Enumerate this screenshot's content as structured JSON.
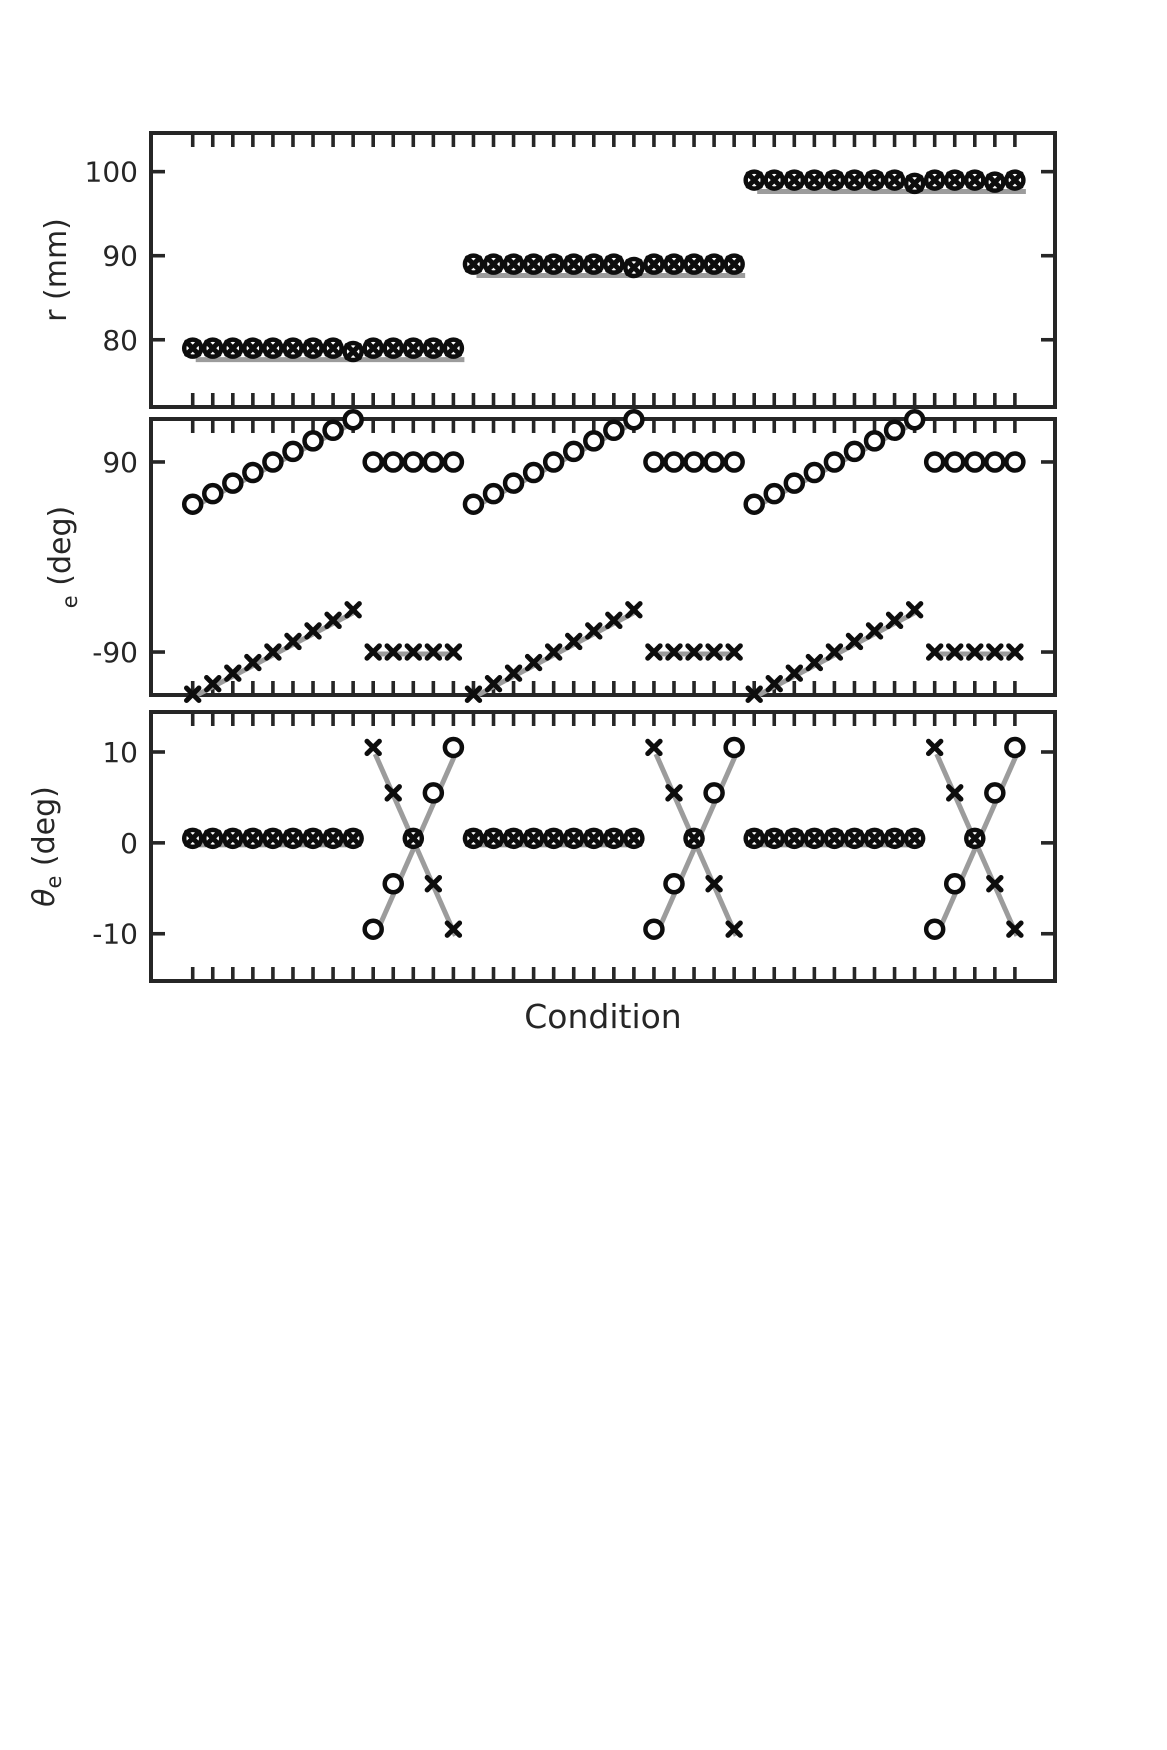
{
  "figure": {
    "xlabel": "Condition",
    "n_conditions": 42,
    "n_groups": 3,
    "conditions_per_group": 14,
    "colors": {
      "marker": "#0d0d0d",
      "truth": "#9c9c9c",
      "axis": "#262626",
      "background": "#ffffff"
    }
  },
  "chart_data": {
    "type": "scatter",
    "title": "",
    "xlabel": "Condition",
    "x_ticks": "one unlabeled tick per condition, 1..42, on top and bottom spines of each panel",
    "legend": "none",
    "panels": [
      {
        "id": "r",
        "ylabel": "r (mm)",
        "ylabel_parts": [
          {
            "text": "r (mm)"
          }
        ],
        "yticks": [
          {
            "v": 80,
            "label": "80"
          },
          {
            "v": 90,
            "label": "90"
          },
          {
            "v": 100,
            "label": "100"
          }
        ],
        "ylim": [
          72.0,
          104.6
        ],
        "series": [
          {
            "name": "circle-series",
            "marker": "circle",
            "values": [
              79,
              79,
              79,
              79,
              79,
              79,
              79,
              79,
              78.6,
              79,
              79,
              79,
              79,
              79,
              89,
              89,
              89,
              89,
              89,
              89,
              89,
              89,
              88.6,
              89,
              89,
              89,
              89,
              89,
              99,
              99,
              99,
              99,
              99,
              99,
              99,
              99,
              98.6,
              99,
              99,
              99,
              98.75,
              99
            ]
          },
          {
            "name": "x-series",
            "marker": "x",
            "values": [
              79,
              79,
              79,
              79,
              79,
              79,
              79,
              79,
              78.6,
              79,
              79,
              79,
              79,
              79,
              89,
              89,
              89,
              89,
              89,
              89,
              89,
              89,
              88.6,
              89,
              89,
              89,
              89,
              89,
              99,
              99,
              99,
              99,
              99,
              99,
              99,
              99,
              98.6,
              99,
              99,
              99,
              98.75,
              99
            ]
          }
        ],
        "truth": [
          {
            "x": [
              1,
              14
            ],
            "y": [
              78,
              78
            ]
          },
          {
            "x": [
              15,
              28
            ],
            "y": [
              88,
              88
            ]
          },
          {
            "x": [
              29,
              42
            ],
            "y": [
              98,
              98
            ]
          }
        ]
      },
      {
        "id": "phi_e",
        "ylabel": "e (deg)",
        "ylabel_parts": [
          {
            "text": "e",
            "sub": true
          },
          {
            "text": " (deg)"
          }
        ],
        "yticks": [
          {
            "v": -90,
            "label": "-90"
          },
          {
            "v": 90,
            "label": "90"
          }
        ],
        "ylim": [
          -130.7,
          130.7
        ],
        "series": [
          {
            "name": "circle-series",
            "marker": "circle",
            "values": [
              50,
              60,
              70,
              80,
              90,
              100,
              110,
              120,
              130,
              90,
              90,
              90,
              90,
              90,
              50,
              60,
              70,
              80,
              90,
              100,
              110,
              120,
              130,
              90,
              90,
              90,
              90,
              90,
              50,
              60,
              70,
              80,
              90,
              100,
              110,
              120,
              130,
              90,
              90,
              90,
              90,
              90
            ]
          },
          {
            "name": "x-series",
            "marker": "x",
            "values": [
              -130,
              -120,
              -110,
              -100,
              -90,
              -80,
              -70,
              -60,
              -50,
              -90,
              -90,
              -90,
              -90,
              -90,
              -130,
              -120,
              -110,
              -100,
              -90,
              -80,
              -70,
              -60,
              -50,
              -90,
              -90,
              -90,
              -90,
              -90,
              -130,
              -120,
              -110,
              -100,
              -90,
              -80,
              -70,
              -60,
              -50,
              -90,
              -90,
              -90,
              -90,
              -90
            ]
          }
        ],
        "truth": [
          {
            "x": [
              1,
              9
            ],
            "y": [
              50,
              130
            ]
          },
          {
            "x": [
              10,
              14
            ],
            "y": [
              90,
              90
            ]
          },
          {
            "x": [
              1,
              9
            ],
            "y": [
              -130,
              -50
            ]
          },
          {
            "x": [
              10,
              14
            ],
            "y": [
              -90,
              -90
            ]
          },
          {
            "x": [
              15,
              23
            ],
            "y": [
              50,
              130
            ]
          },
          {
            "x": [
              24,
              28
            ],
            "y": [
              90,
              90
            ]
          },
          {
            "x": [
              15,
              23
            ],
            "y": [
              -130,
              -50
            ]
          },
          {
            "x": [
              24,
              28
            ],
            "y": [
              -90,
              -90
            ]
          },
          {
            "x": [
              29,
              37
            ],
            "y": [
              50,
              130
            ]
          },
          {
            "x": [
              38,
              42
            ],
            "y": [
              90,
              90
            ]
          },
          {
            "x": [
              29,
              37
            ],
            "y": [
              -130,
              -50
            ]
          },
          {
            "x": [
              38,
              42
            ],
            "y": [
              -90,
              -90
            ]
          }
        ]
      },
      {
        "id": "theta_e",
        "ylabel": "θe (deg)",
        "ylabel_parts": [
          {
            "text": "θ",
            "italic": true
          },
          {
            "text": "e",
            "sub": true
          },
          {
            "text": " (deg)"
          }
        ],
        "yticks": [
          {
            "v": -10,
            "label": "-10"
          },
          {
            "v": 0,
            "label": "0"
          },
          {
            "v": 10,
            "label": "10"
          }
        ],
        "ylim": [
          -15.2,
          14.4
        ],
        "series": [
          {
            "name": "circle-series",
            "marker": "circle",
            "values": [
              0.5,
              0.5,
              0.5,
              0.5,
              0.5,
              0.5,
              0.5,
              0.5,
              0.5,
              -9.5,
              -4.5,
              0.5,
              5.5,
              10.5,
              0.5,
              0.5,
              0.5,
              0.5,
              0.5,
              0.5,
              0.5,
              0.5,
              0.5,
              -9.5,
              -4.5,
              0.5,
              5.5,
              10.5,
              0.5,
              0.5,
              0.5,
              0.5,
              0.5,
              0.5,
              0.5,
              0.5,
              0.5,
              -9.5,
              -4.5,
              0.5,
              5.5,
              10.5
            ]
          },
          {
            "name": "x-series",
            "marker": "x",
            "values": [
              0.5,
              0.5,
              0.5,
              0.5,
              0.5,
              0.5,
              0.5,
              0.5,
              0.5,
              10.5,
              5.5,
              0.5,
              -4.5,
              -9.5,
              0.5,
              0.5,
              0.5,
              0.5,
              0.5,
              0.5,
              0.5,
              0.5,
              0.5,
              10.5,
              5.5,
              0.5,
              -4.5,
              -9.5,
              0.5,
              0.5,
              0.5,
              0.5,
              0.5,
              0.5,
              0.5,
              0.5,
              0.5,
              10.5,
              5.5,
              0.5,
              -4.5,
              -9.5
            ]
          }
        ],
        "truth": [
          {
            "x": [
              1,
              9
            ],
            "y": [
              0,
              0
            ]
          },
          {
            "x": [
              10,
              14
            ],
            "y": [
              -10,
              10
            ]
          },
          {
            "x": [
              10,
              14
            ],
            "y": [
              10,
              -10
            ]
          },
          {
            "x": [
              15,
              23
            ],
            "y": [
              0,
              0
            ]
          },
          {
            "x": [
              24,
              28
            ],
            "y": [
              -10,
              10
            ]
          },
          {
            "x": [
              24,
              28
            ],
            "y": [
              10,
              -10
            ]
          },
          {
            "x": [
              29,
              37
            ],
            "y": [
              0,
              0
            ]
          },
          {
            "x": [
              38,
              42
            ],
            "y": [
              -10,
              10
            ]
          },
          {
            "x": [
              38,
              42
            ],
            "y": [
              10,
              -10
            ]
          }
        ]
      }
    ]
  }
}
